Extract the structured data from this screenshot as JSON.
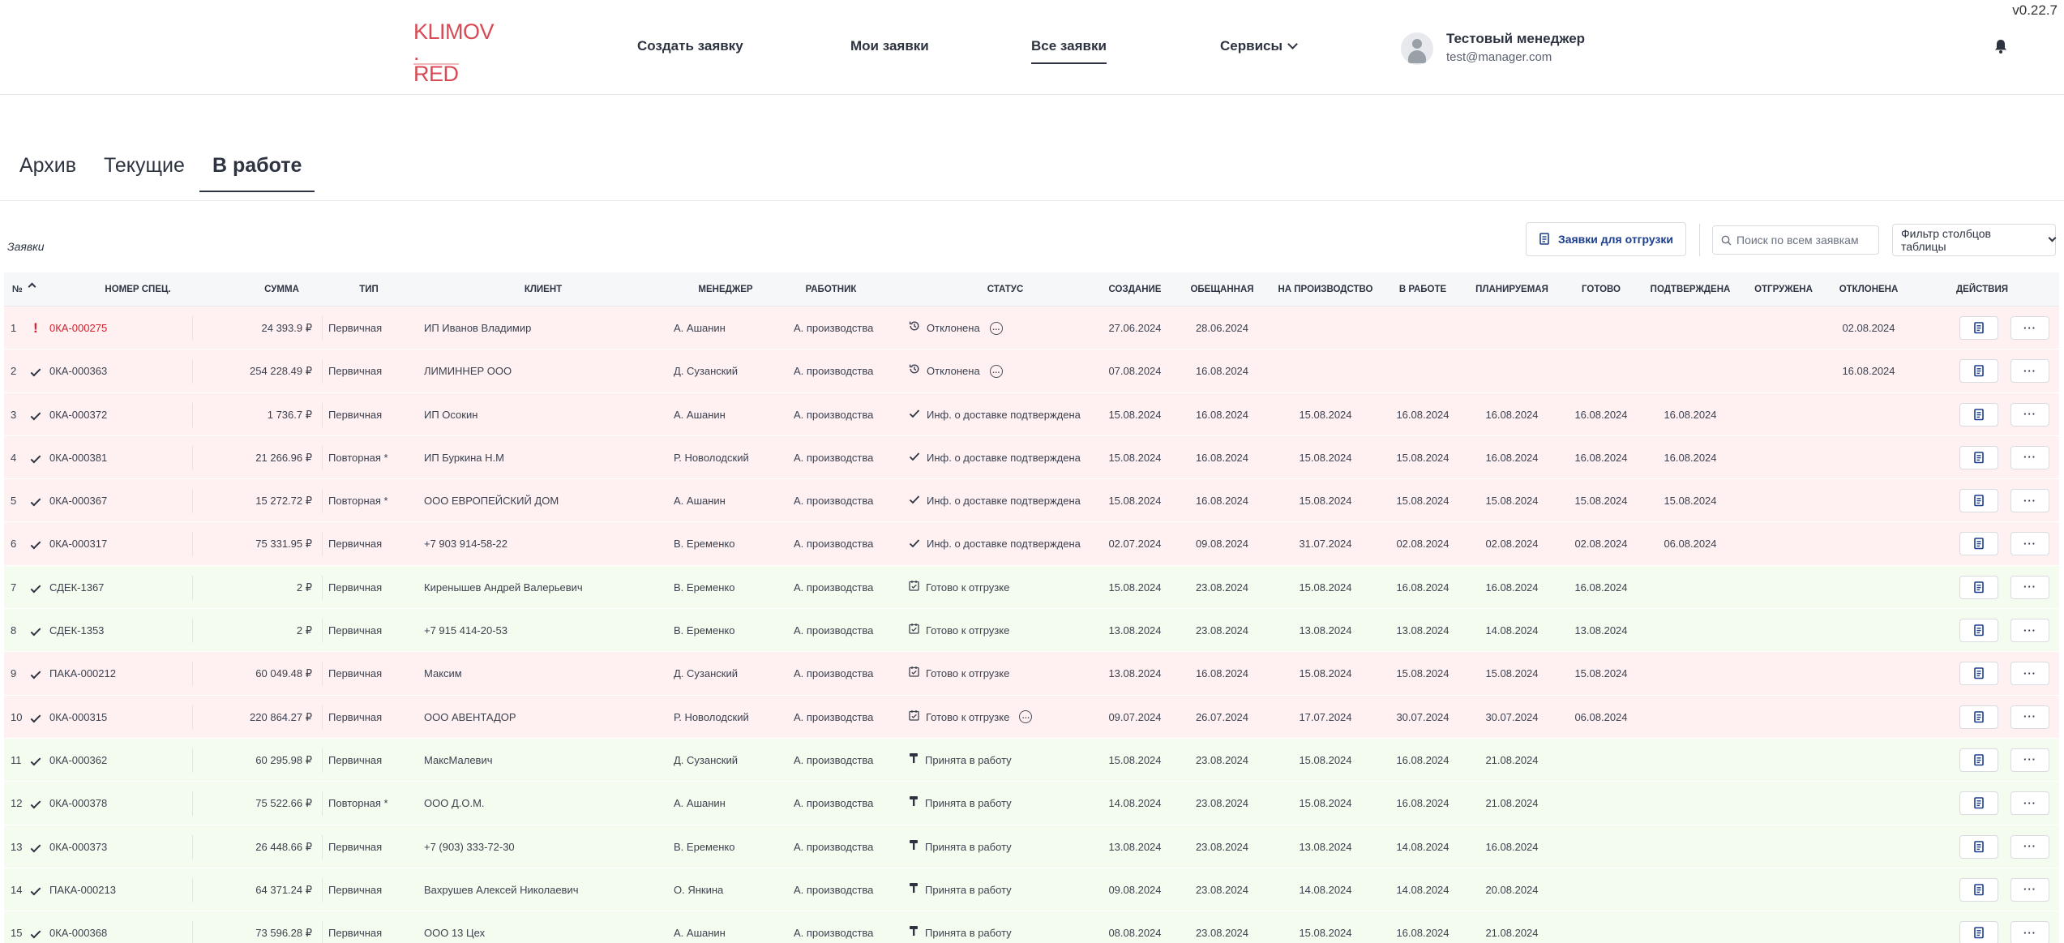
{
  "version": "v0.22.7",
  "header": {
    "logo_text_line1": "KLIMOV .",
    "logo_text_line2": "RED",
    "nav": [
      {
        "label": "Создать заявку"
      },
      {
        "label": "Мои заявки"
      },
      {
        "label": "Все заявки",
        "active": true
      },
      {
        "label": "Сервисы"
      }
    ],
    "user": {
      "name": "Тестовый менеджер",
      "email": "test@manager.com"
    }
  },
  "tabs": [
    {
      "label": "Архив"
    },
    {
      "label": "Текущие"
    },
    {
      "label": "В работе",
      "active": true
    }
  ],
  "toolbar": {
    "section_label": "Заявки",
    "ship_button": "Заявки для отгрузки",
    "search_placeholder": "Поиск по всем заявкам",
    "filter_label": "Фильтр столбцов таблицы"
  },
  "colors": {
    "row_red": "#fff0f1",
    "row_green": "#f3fcee",
    "accent": "#1b3f8e",
    "alert": "#d21f2b",
    "logo": "#d84a55"
  },
  "table": {
    "headers": {
      "num": "№",
      "spec": "Номер спец.",
      "sum": "Сумма",
      "type": "Тип",
      "client": "Клиент",
      "manager": "Менеджер",
      "worker": "Работник",
      "status": "Статус",
      "created": "Создание",
      "promised": "Обещанная",
      "production": "На производство",
      "inwork": "В работе",
      "planned": "Планируемая",
      "ready": "Готово",
      "confirmed": "Подтверждена",
      "shipped": "Отгружена",
      "rejected": "Отклонена",
      "actions": "Действия"
    },
    "rows": [
      {
        "num": "1",
        "mark": "!",
        "spec": "0КА-000275",
        "sum": "24 393.9 ₽",
        "type": "Первичная",
        "client": "ИП Иванов Владимир",
        "manager": "А. Ашанин",
        "worker": "А. производства",
        "status": "Отклонена",
        "status_icon": "history-icon",
        "comment": true,
        "created": "27.06.2024",
        "promised": "28.06.2024",
        "production": "",
        "inwork": "",
        "planned": "",
        "ready": "",
        "confirmed": "",
        "shipped": "",
        "rejected": "02.08.2024",
        "tone": "red",
        "spec_alert": true
      },
      {
        "num": "2",
        "mark": "check",
        "spec": "0КА-000363",
        "sum": "254 228.49 ₽",
        "type": "Первичная",
        "client": "ЛИМИННЕР ООО",
        "manager": "Д. Сузанский",
        "worker": "А. производства",
        "status": "Отклонена",
        "status_icon": "history-icon",
        "comment": true,
        "created": "07.08.2024",
        "promised": "16.08.2024",
        "production": "",
        "inwork": "",
        "planned": "",
        "ready": "",
        "confirmed": "",
        "shipped": "",
        "rejected": "16.08.2024",
        "tone": "red"
      },
      {
        "num": "3",
        "mark": "check",
        "spec": "0КА-000372",
        "sum": "1 736.7 ₽",
        "type": "Первичная",
        "client": "ИП Осокин",
        "manager": "А. Ашанин",
        "worker": "А. производства",
        "status": "Инф. о доставке подтверждена",
        "status_icon": "check-icon",
        "comment": false,
        "created": "15.08.2024",
        "promised": "16.08.2024",
        "production": "15.08.2024",
        "inwork": "16.08.2024",
        "planned": "16.08.2024",
        "ready": "16.08.2024",
        "confirmed": "16.08.2024",
        "shipped": "",
        "rejected": "",
        "tone": "red"
      },
      {
        "num": "4",
        "mark": "check",
        "spec": "0КА-000381",
        "sum": "21 266.96 ₽",
        "type": "Повторная *",
        "client": "ИП Буркина Н.М",
        "manager": "Р. Новолодский",
        "worker": "А. производства",
        "status": "Инф. о доставке подтверждена",
        "status_icon": "check-icon",
        "comment": false,
        "created": "15.08.2024",
        "promised": "16.08.2024",
        "production": "15.08.2024",
        "inwork": "15.08.2024",
        "planned": "16.08.2024",
        "ready": "16.08.2024",
        "confirmed": "16.08.2024",
        "shipped": "",
        "rejected": "",
        "tone": "red"
      },
      {
        "num": "5",
        "mark": "check",
        "spec": "0КА-000367",
        "sum": "15 272.72 ₽",
        "type": "Повторная *",
        "client": "ООО ЕВРОПЕЙСКИЙ ДОМ",
        "manager": "А. Ашанин",
        "worker": "А. производства",
        "status": "Инф. о доставке подтверждена",
        "status_icon": "check-icon",
        "comment": false,
        "created": "15.08.2024",
        "promised": "16.08.2024",
        "production": "15.08.2024",
        "inwork": "15.08.2024",
        "planned": "15.08.2024",
        "ready": "15.08.2024",
        "confirmed": "15.08.2024",
        "shipped": "",
        "rejected": "",
        "tone": "red"
      },
      {
        "num": "6",
        "mark": "check",
        "spec": "0КА-000317",
        "sum": "75 331.95 ₽",
        "type": "Первичная",
        "client": "+7 903 914-58-22",
        "manager": "В. Еременко",
        "worker": "А. производства",
        "status": "Инф. о доставке подтверждена",
        "status_icon": "check-icon",
        "comment": false,
        "created": "02.07.2024",
        "promised": "09.08.2024",
        "production": "31.07.2024",
        "inwork": "02.08.2024",
        "planned": "02.08.2024",
        "ready": "02.08.2024",
        "confirmed": "06.08.2024",
        "shipped": "",
        "rejected": "",
        "tone": "red"
      },
      {
        "num": "7",
        "mark": "check",
        "spec": "СДЕК-1367",
        "sum": "2 ₽",
        "type": "Первичная",
        "client": "Киренышев Андрей Валерьевич",
        "manager": "В. Еременко",
        "worker": "А. производства",
        "status": "Готово к отгрузке",
        "status_icon": "calendar-check-icon",
        "comment": false,
        "created": "15.08.2024",
        "promised": "23.08.2024",
        "production": "15.08.2024",
        "inwork": "16.08.2024",
        "planned": "16.08.2024",
        "ready": "16.08.2024",
        "confirmed": "",
        "shipped": "",
        "rejected": "",
        "tone": "green"
      },
      {
        "num": "8",
        "mark": "check",
        "spec": "СДЕК-1353",
        "sum": "2 ₽",
        "type": "Первичная",
        "client": "+7 915 414-20-53",
        "manager": "В. Еременко",
        "worker": "А. производства",
        "status": "Готово к отгрузке",
        "status_icon": "calendar-check-icon",
        "comment": false,
        "created": "13.08.2024",
        "promised": "23.08.2024",
        "production": "13.08.2024",
        "inwork": "13.08.2024",
        "planned": "14.08.2024",
        "ready": "13.08.2024",
        "confirmed": "",
        "shipped": "",
        "rejected": "",
        "tone": "green"
      },
      {
        "num": "9",
        "mark": "check",
        "spec": "ПАКА-000212",
        "sum": "60 049.48 ₽",
        "type": "Первичная",
        "client": "Максим",
        "manager": "Д. Сузанский",
        "worker": "А. производства",
        "status": "Готово к отгрузке",
        "status_icon": "calendar-check-icon",
        "comment": false,
        "created": "13.08.2024",
        "promised": "16.08.2024",
        "production": "15.08.2024",
        "inwork": "15.08.2024",
        "planned": "15.08.2024",
        "ready": "15.08.2024",
        "confirmed": "",
        "shipped": "",
        "rejected": "",
        "tone": "red"
      },
      {
        "num": "10",
        "mark": "check",
        "spec": "0КА-000315",
        "sum": "220 864.27 ₽",
        "type": "Первичная",
        "client": "ООО АВЕНТАДОР",
        "manager": "Р. Новолодский",
        "worker": "А. производства",
        "status": "Готово к отгрузке",
        "status_icon": "calendar-check-icon",
        "comment": true,
        "created": "09.07.2024",
        "promised": "26.07.2024",
        "production": "17.07.2024",
        "inwork": "30.07.2024",
        "planned": "30.07.2024",
        "ready": "06.08.2024",
        "confirmed": "",
        "shipped": "",
        "rejected": "",
        "tone": "red"
      },
      {
        "num": "11",
        "mark": "check",
        "spec": "0КА-000362",
        "sum": "60 295.98 ₽",
        "type": "Первичная",
        "client": "МаксМалевич",
        "manager": "Д. Сузанский",
        "worker": "А. производства",
        "status": "Принята в работу",
        "status_icon": "hammer-icon",
        "comment": false,
        "created": "15.08.2024",
        "promised": "23.08.2024",
        "production": "15.08.2024",
        "inwork": "16.08.2024",
        "planned": "21.08.2024",
        "ready": "",
        "confirmed": "",
        "shipped": "",
        "rejected": "",
        "tone": "green"
      },
      {
        "num": "12",
        "mark": "check",
        "spec": "0КА-000378",
        "sum": "75 522.66 ₽",
        "type": "Повторная *",
        "client": "ООО Д.О.М.",
        "manager": "А. Ашанин",
        "worker": "А. производства",
        "status": "Принята в работу",
        "status_icon": "hammer-icon",
        "comment": false,
        "created": "14.08.2024",
        "promised": "23.08.2024",
        "production": "15.08.2024",
        "inwork": "16.08.2024",
        "planned": "21.08.2024",
        "ready": "",
        "confirmed": "",
        "shipped": "",
        "rejected": "",
        "tone": "green"
      },
      {
        "num": "13",
        "mark": "check",
        "spec": "0КА-000373",
        "sum": "26 448.66 ₽",
        "type": "Первичная",
        "client": "+7 (903) 333-72-30",
        "manager": "В. Еременко",
        "worker": "А. производства",
        "status": "Принята в работу",
        "status_icon": "hammer-icon",
        "comment": false,
        "created": "13.08.2024",
        "promised": "23.08.2024",
        "production": "13.08.2024",
        "inwork": "14.08.2024",
        "planned": "16.08.2024",
        "ready": "",
        "confirmed": "",
        "shipped": "",
        "rejected": "",
        "tone": "green"
      },
      {
        "num": "14",
        "mark": "check",
        "spec": "ПАКА-000213",
        "sum": "64 371.24 ₽",
        "type": "Первичная",
        "client": "Вахрушев Алексей Николаевич",
        "manager": "О. Янкина",
        "worker": "А. производства",
        "status": "Принята в работу",
        "status_icon": "hammer-icon",
        "comment": false,
        "created": "09.08.2024",
        "promised": "23.08.2024",
        "production": "14.08.2024",
        "inwork": "14.08.2024",
        "planned": "20.08.2024",
        "ready": "",
        "confirmed": "",
        "shipped": "",
        "rejected": "",
        "tone": "green"
      },
      {
        "num": "15",
        "mark": "check",
        "spec": "0КА-000368",
        "sum": "73 596.28 ₽",
        "type": "Первичная",
        "client": "ООО 13 Цех",
        "manager": "А. Ашанин",
        "worker": "А. производства",
        "status": "Принята в работу",
        "status_icon": "hammer-icon",
        "comment": false,
        "created": "08.08.2024",
        "promised": "23.08.2024",
        "production": "15.08.2024",
        "inwork": "16.08.2024",
        "planned": "21.08.2024",
        "ready": "",
        "confirmed": "",
        "shipped": "",
        "rejected": "",
        "tone": "green"
      }
    ]
  }
}
